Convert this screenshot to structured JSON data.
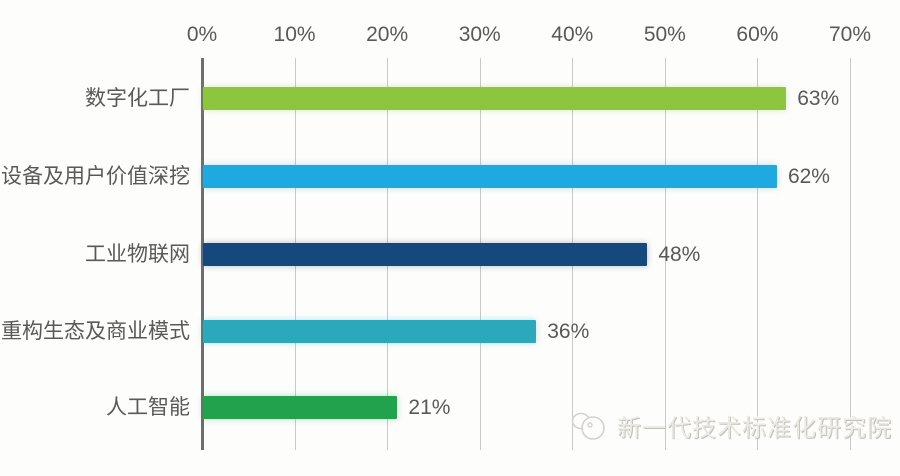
{
  "chart_data": {
    "type": "bar",
    "orientation": "horizontal",
    "title": "",
    "xlabel": "",
    "ylabel": "",
    "categories": [
      "数字化工厂",
      "设备及用户价值深挖",
      "工业物联网",
      "重构生态及商业模式",
      "人工智能"
    ],
    "values": [
      63,
      62,
      48,
      36,
      21
    ],
    "value_labels": [
      "63%",
      "62%",
      "48%",
      "36%",
      "21%"
    ],
    "bar_colors": [
      "#8cc63f",
      "#1ea9e1",
      "#15497e",
      "#2ba8bc",
      "#23a24d"
    ],
    "x_ticks": [
      "0%",
      "10%",
      "20%",
      "30%",
      "40%",
      "50%",
      "60%",
      "70%"
    ],
    "x_tick_values": [
      0,
      10,
      20,
      30,
      40,
      50,
      60,
      70
    ],
    "xlim": [
      0,
      70
    ],
    "grid": "vertical",
    "legend": "none"
  },
  "watermark": {
    "text": "新一代技术标准化研究院",
    "logo": "institute-logo-icon"
  },
  "colors": {
    "text": "#595959",
    "gridline": "#c9c9c9",
    "axis_line": "#6e6e6e",
    "background": "#fdfdfb",
    "watermark_text": "#eceae6"
  }
}
